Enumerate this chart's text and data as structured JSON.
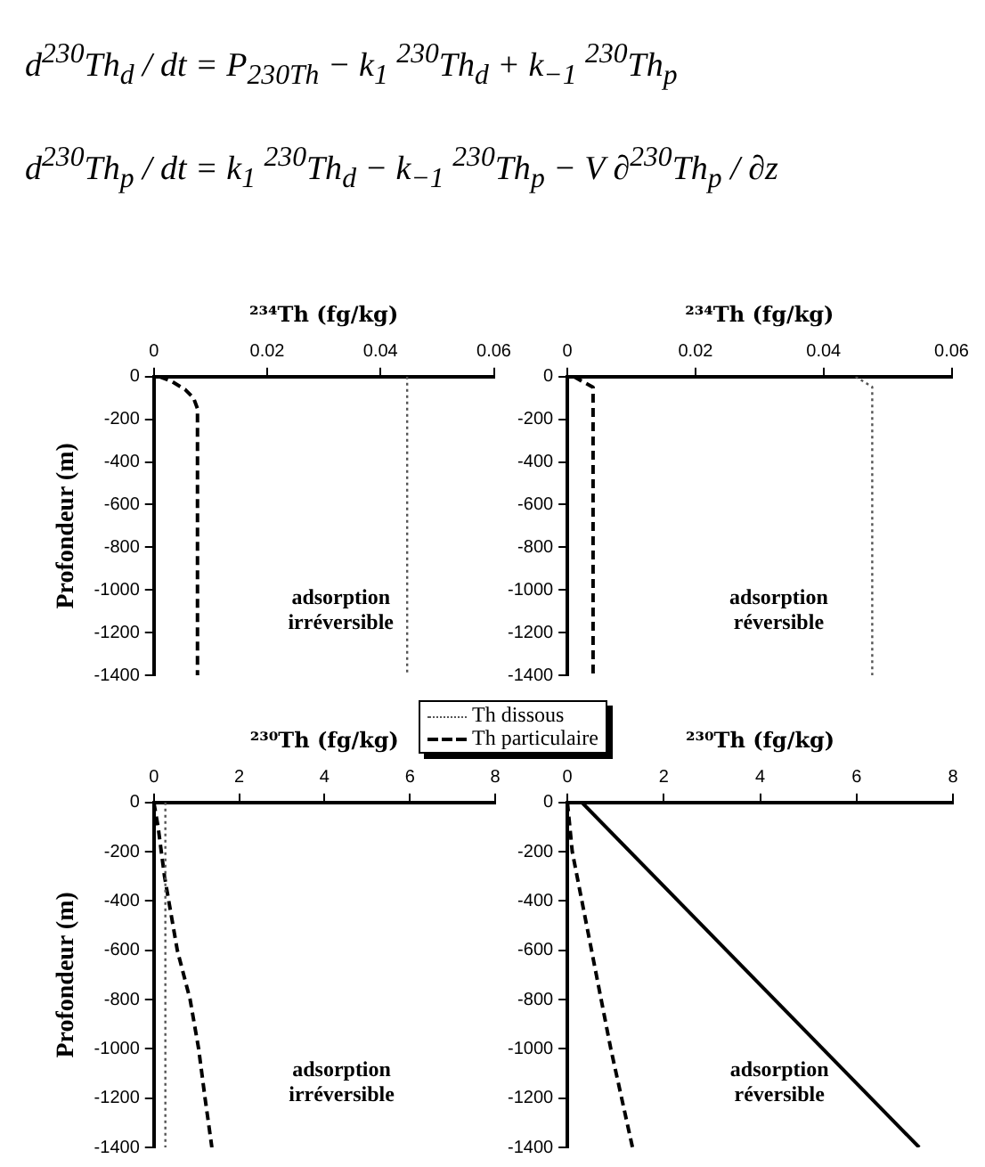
{
  "chart_data": [
    {
      "type": "other",
      "annotations": [
        "d$^{230}$Th$_{d}$ / dt = P$_{230Th}$ − k$_{1}$ $^{230}$Th$_{d}$ + k$_{−1}$ $^{230}$Th$_{p}$",
        "d$^{230}$Th$_{p}$ / dt = k$_{1}$ $^{230}$Th$_{d}$ − k$_{−1}$ $^{230}$Th$_{p}$ − V ∂$^{230}$Th$_{p}$ / ∂z"
      ]
    },
    {
      "type": "line",
      "xlabel": "²³⁴Th (fg/kg)",
      "ylabel": "Profondeur (m)",
      "xlim": [
        0,
        0.06
      ],
      "xticks": [
        0,
        0.02,
        0.04,
        0.06
      ],
      "ylim": [
        -1400,
        0
      ],
      "yticks": [
        0,
        -200,
        -400,
        -600,
        -800,
        -1000,
        -1200,
        -1400
      ],
      "grid": false,
      "annotations": [
        "adsorption irréversible"
      ],
      "series": [
        {
          "color": "#555555",
          "line_style": "dotted",
          "x": [
            0.0447,
            0.0447
          ],
          "values": [
            0,
            -1400
          ]
        },
        {
          "color": "#000000",
          "line_style": "dashed",
          "x": [
            0.001,
            0.003,
            0.0055,
            0.007,
            0.0077,
            0.0077
          ],
          "values": [
            0,
            -20,
            -60,
            -100,
            -150,
            -1400
          ]
        }
      ]
    },
    {
      "type": "line",
      "xlabel": "²³⁴Th (fg/kg)",
      "xlim": [
        0,
        0.06
      ],
      "xticks": [
        0,
        0.02,
        0.04,
        0.06
      ],
      "ylim": [
        -1400,
        0
      ],
      "yticks": [
        0,
        -200,
        -400,
        -600,
        -800,
        -1000,
        -1200,
        -1400
      ],
      "grid": false,
      "annotations": [
        "adsorption réversible"
      ],
      "series": [
        {
          "color": "#555555",
          "line_style": "dotted",
          "x": [
            0.045,
            0.0476,
            0.0476
          ],
          "values": [
            0,
            -48,
            -1400
          ]
        },
        {
          "color": "#000000",
          "line_style": "dashed",
          "x": [
            0.001,
            0.004,
            0.004
          ],
          "values": [
            0,
            -50,
            -1400
          ]
        }
      ]
    },
    {
      "type": "line",
      "xlabel": "²³⁰Th (fg/kg)",
      "ylabel": "Profondeur (m)",
      "xlim": [
        0,
        8
      ],
      "xticks": [
        0,
        2,
        4,
        6,
        8
      ],
      "ylim": [
        -1400,
        0
      ],
      "yticks": [
        0,
        -200,
        -400,
        -600,
        -800,
        -1000,
        -1200,
        -1400
      ],
      "grid": false,
      "legend": "top right",
      "annotations": [
        "adsorption irréversible"
      ],
      "series": [
        {
          "name": "Th dissous",
          "color": "#555555",
          "line_style": "dotted",
          "x": [
            0.27,
            0.27
          ],
          "values": [
            0,
            -1400
          ]
        },
        {
          "name": "Th particulaire",
          "color": "#000000",
          "line_style": "dashed",
          "x": [
            0,
            0.1,
            0.25,
            0.35,
            0.55,
            0.85,
            1.05,
            1.2,
            1.36
          ],
          "values": [
            0,
            -100,
            -300,
            -400,
            -600,
            -800,
            -1000,
            -1200,
            -1400
          ]
        }
      ]
    },
    {
      "type": "line",
      "xlabel": "²³⁰Th (fg/kg)",
      "xlim": [
        0,
        8
      ],
      "xticks": [
        0,
        2,
        4,
        6,
        8
      ],
      "ylim": [
        -1400,
        0
      ],
      "yticks": [
        0,
        -200,
        -400,
        -600,
        -800,
        -1000,
        -1200,
        -1400
      ],
      "grid": false,
      "annotations": [
        "adsorption réversible"
      ],
      "series": [
        {
          "color": "#000000",
          "line_style": "solid",
          "x": [
            0.3,
            7.3
          ],
          "values": [
            0,
            -1400
          ]
        },
        {
          "color": "#000000",
          "line_style": "dashed",
          "x": [
            0,
            0.1,
            0.3,
            0.6,
            0.9,
            1.35
          ],
          "values": [
            0,
            -200,
            -400,
            -700,
            -1000,
            -1400
          ]
        }
      ]
    }
  ]
}
